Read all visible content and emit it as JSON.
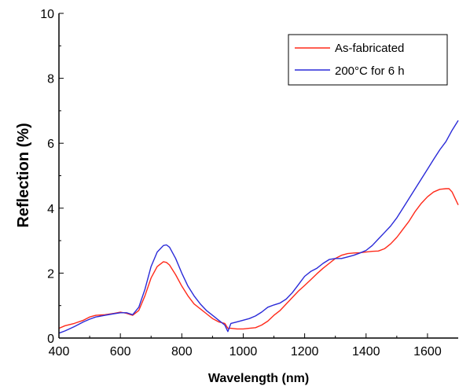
{
  "chart_data": {
    "type": "line",
    "title": "",
    "xlabel": "Wavelength (nm)",
    "ylabel": "Reflection (%)",
    "xlim": [
      400,
      1700
    ],
    "ylim": [
      0,
      10
    ],
    "xticks": [
      400,
      600,
      800,
      1000,
      1200,
      1400,
      1600
    ],
    "yticks": [
      0,
      2,
      4,
      6,
      8,
      10
    ],
    "grid": false,
    "legend": "top-right",
    "series": [
      {
        "name": "As-fabricated",
        "color": "#ff2a1a",
        "x": [
          400,
          420,
          450,
          480,
          500,
          520,
          550,
          580,
          600,
          620,
          640,
          660,
          680,
          700,
          720,
          740,
          750,
          760,
          780,
          800,
          820,
          840,
          860,
          880,
          900,
          920,
          940,
          950,
          960,
          980,
          1000,
          1020,
          1040,
          1060,
          1080,
          1100,
          1120,
          1140,
          1160,
          1180,
          1200,
          1220,
          1240,
          1260,
          1280,
          1300,
          1320,
          1340,
          1360,
          1380,
          1400,
          1420,
          1440,
          1460,
          1480,
          1500,
          1520,
          1540,
          1560,
          1580,
          1600,
          1620,
          1640,
          1660,
          1670,
          1680,
          1690,
          1700
        ],
        "y": [
          0.3,
          0.38,
          0.45,
          0.55,
          0.65,
          0.7,
          0.72,
          0.76,
          0.8,
          0.76,
          0.7,
          0.85,
          1.3,
          1.85,
          2.2,
          2.35,
          2.33,
          2.25,
          1.95,
          1.6,
          1.3,
          1.05,
          0.9,
          0.75,
          0.6,
          0.5,
          0.45,
          0.3,
          0.3,
          0.28,
          0.28,
          0.3,
          0.32,
          0.4,
          0.52,
          0.7,
          0.85,
          1.05,
          1.25,
          1.45,
          1.62,
          1.8,
          1.98,
          2.15,
          2.3,
          2.45,
          2.55,
          2.6,
          2.62,
          2.63,
          2.65,
          2.67,
          2.68,
          2.75,
          2.9,
          3.1,
          3.35,
          3.6,
          3.9,
          4.15,
          4.35,
          4.5,
          4.58,
          4.6,
          4.6,
          4.5,
          4.3,
          4.1
        ]
      },
      {
        "name": "200°C for 6 h",
        "color": "#2a2ad8",
        "x": [
          400,
          420,
          450,
          480,
          500,
          520,
          550,
          580,
          600,
          620,
          640,
          660,
          680,
          700,
          720,
          740,
          750,
          760,
          780,
          800,
          820,
          840,
          860,
          880,
          900,
          920,
          940,
          950,
          960,
          980,
          1000,
          1020,
          1040,
          1060,
          1080,
          1100,
          1120,
          1140,
          1160,
          1180,
          1200,
          1220,
          1240,
          1260,
          1280,
          1300,
          1320,
          1340,
          1360,
          1380,
          1400,
          1420,
          1440,
          1460,
          1480,
          1500,
          1520,
          1540,
          1560,
          1580,
          1600,
          1620,
          1640,
          1660,
          1680,
          1700
        ],
        "y": [
          0.15,
          0.22,
          0.35,
          0.5,
          0.58,
          0.65,
          0.7,
          0.75,
          0.78,
          0.78,
          0.72,
          0.95,
          1.5,
          2.2,
          2.65,
          2.85,
          2.87,
          2.8,
          2.45,
          2.0,
          1.6,
          1.3,
          1.05,
          0.85,
          0.7,
          0.55,
          0.4,
          0.2,
          0.45,
          0.5,
          0.55,
          0.6,
          0.68,
          0.8,
          0.95,
          1.02,
          1.08,
          1.2,
          1.4,
          1.65,
          1.9,
          2.05,
          2.15,
          2.3,
          2.42,
          2.45,
          2.45,
          2.5,
          2.55,
          2.62,
          2.7,
          2.85,
          3.05,
          3.25,
          3.45,
          3.7,
          4.0,
          4.3,
          4.6,
          4.9,
          5.2,
          5.5,
          5.8,
          6.05,
          6.4,
          6.7
        ]
      }
    ]
  }
}
